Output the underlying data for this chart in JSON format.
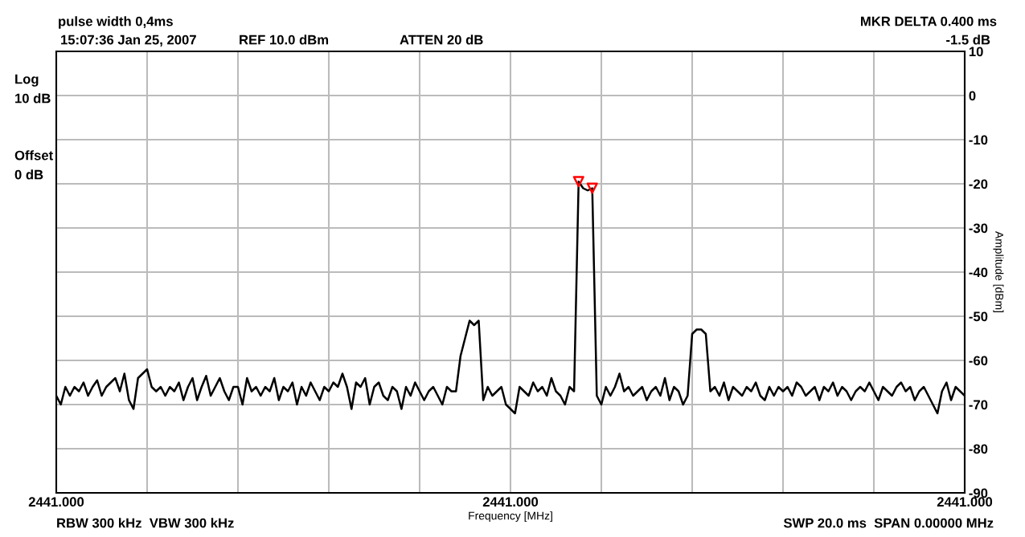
{
  "chart_data": {
    "type": "line",
    "title": "pulse width 0,4ms",
    "xlabel": "Frequency [MHz]",
    "ylabel": "Amplitude [dBm]",
    "annotations": [
      "15:07:36 Jan 25, 2007",
      "REF 10.0 dBm",
      "ATTEN 20 dB",
      "MKR DELTA 0.400 ms",
      "-1.5 dB",
      "Log",
      "10 dB",
      "Offset",
      "0 dB",
      "RBW 300 kHz  VBW 300 kHz",
      "SWP 20.0 ms  SPAN 0.00000 MHz"
    ],
    "categories": [
      "2441.000",
      null,
      null,
      null,
      null,
      null,
      null,
      null,
      null,
      null,
      null,
      null,
      null,
      null,
      null,
      null,
      null,
      null,
      null,
      null,
      null,
      null,
      null,
      null,
      null,
      null,
      null,
      null,
      null,
      null,
      null,
      null,
      null,
      null,
      null,
      null,
      null,
      null,
      null,
      null,
      null,
      null,
      null,
      null,
      null,
      null,
      null,
      null,
      null,
      null,
      null,
      null,
      null,
      null,
      null,
      null,
      null,
      null,
      null,
      null,
      null,
      null,
      null,
      null,
      null,
      null,
      null,
      null,
      null,
      null,
      null,
      null,
      null,
      null,
      null,
      null,
      null,
      null,
      null,
      null,
      null,
      null,
      null,
      null,
      null,
      null,
      null,
      null,
      null,
      null,
      null,
      null,
      null,
      null,
      null,
      null,
      null,
      null,
      null,
      null,
      "2441.000",
      null,
      null,
      null,
      null,
      null,
      null,
      null,
      null,
      null,
      null,
      null,
      null,
      null,
      null,
      null,
      null,
      null,
      null,
      null,
      null,
      null,
      null,
      null,
      null,
      null,
      null,
      null,
      null,
      null,
      null,
      null,
      null,
      null,
      null,
      null,
      null,
      null,
      null,
      null,
      null,
      null,
      null,
      null,
      null,
      null,
      null,
      null,
      null,
      null,
      null,
      null,
      null,
      null,
      null,
      null,
      null,
      null,
      null,
      null,
      null,
      null,
      null,
      null,
      null,
      null,
      null,
      null,
      null,
      null,
      null,
      null,
      null,
      null,
      null,
      null,
      null,
      null,
      null,
      null,
      null,
      null,
      null,
      null,
      null,
      null,
      null,
      null,
      null,
      null,
      null,
      null,
      null,
      null,
      null,
      null,
      null,
      null,
      null,
      null,
      "2441.000"
    ],
    "ylim": [
      -90,
      10
    ],
    "yticks": [
      -90,
      -80,
      -70,
      -60,
      -50,
      -40,
      -30,
      -20,
      -10,
      0,
      10
    ],
    "grid": true,
    "series": [
      {
        "color": "#000000",
        "line_style": "solid",
        "values": [
          -68,
          -70,
          -66,
          -68,
          -66,
          -67,
          -65,
          -68,
          -66,
          -64.5,
          -68,
          -66,
          -65,
          -64,
          -67,
          -63,
          -69,
          -71,
          -64,
          -63,
          -62,
          -66,
          -67,
          -66,
          -68,
          -66,
          -67,
          -65,
          -69,
          -66,
          -64,
          -69,
          -66,
          -63.5,
          -68,
          -66,
          -64,
          -67,
          -69,
          -66,
          -66,
          -70,
          -64,
          -67,
          -66,
          -68,
          -66,
          -67,
          -64,
          -69,
          -66,
          -67,
          -65,
          -70,
          -66,
          -68,
          -65,
          -67,
          -69,
          -66,
          -67,
          -65,
          -66,
          -63,
          -66,
          -71,
          -65,
          -66,
          -64,
          -70,
          -66,
          -65,
          -68,
          -69,
          -66,
          -67,
          -71,
          -66,
          -68,
          -65,
          -67,
          -69,
          -67,
          -66,
          -68,
          -70,
          -66,
          -67,
          -67,
          -59,
          -55,
          -51,
          -52,
          -51,
          -69,
          -66,
          -68,
          -67,
          -66,
          -70,
          -71,
          -72,
          -66,
          -67,
          -68,
          -65,
          -67,
          -66,
          -68,
          -64,
          -67,
          -68,
          -70,
          -66,
          -67,
          -19.5,
          -21,
          -21.5,
          -21,
          -68,
          -70,
          -66,
          -68,
          -66,
          -63,
          -67,
          -66,
          -68,
          -67,
          -66,
          -69,
          -67,
          -66,
          -68,
          -64,
          -69,
          -66,
          -67,
          -70,
          -68,
          -54,
          -53,
          -53,
          -54,
          -67,
          -66,
          -68,
          -65,
          -69,
          -66,
          -67,
          -68,
          -66,
          -67,
          -65,
          -68,
          -69,
          -66,
          -68,
          -66,
          -67,
          -66,
          -68,
          -65,
          -66,
          -68,
          -67,
          -66,
          -69,
          -66,
          -67,
          -65,
          -68,
          -66,
          -67,
          -69,
          -67,
          -66,
          -67,
          -65,
          -67,
          -69,
          -66,
          -67,
          -68,
          -66,
          -65,
          -67,
          -66,
          -69,
          -67,
          -66,
          -68,
          -70,
          -72,
          -67,
          -65,
          -69,
          -66,
          -67,
          -68
        ]
      },
      {
        "type": "scatter",
        "color": "#ff0000",
        "marker": "triangle",
        "values": [
          null,
          null,
          null,
          null,
          null,
          null,
          null,
          null,
          null,
          null,
          null,
          null,
          null,
          null,
          null,
          null,
          null,
          null,
          null,
          null,
          null,
          null,
          null,
          null,
          null,
          null,
          null,
          null,
          null,
          null,
          null,
          null,
          null,
          null,
          null,
          null,
          null,
          null,
          null,
          null,
          null,
          null,
          null,
          null,
          null,
          null,
          null,
          null,
          null,
          null,
          null,
          null,
          null,
          null,
          null,
          null,
          null,
          null,
          null,
          null,
          null,
          null,
          null,
          null,
          null,
          null,
          null,
          null,
          null,
          null,
          null,
          null,
          null,
          null,
          null,
          null,
          null,
          null,
          null,
          null,
          null,
          null,
          null,
          null,
          null,
          null,
          null,
          null,
          null,
          null,
          null,
          null,
          null,
          null,
          null,
          null,
          null,
          null,
          null,
          null,
          null,
          null,
          null,
          null,
          null,
          null,
          null,
          null,
          null,
          null,
          null,
          null,
          null,
          null,
          null,
          -19.5,
          null,
          null,
          -21,
          null,
          null,
          null,
          null,
          null,
          null,
          null,
          null,
          null,
          null,
          null,
          null,
          null,
          null,
          null,
          null,
          null,
          null,
          null,
          null,
          null,
          null,
          null,
          null,
          null,
          null,
          null,
          null,
          null,
          null,
          null,
          null,
          null,
          null,
          null,
          null,
          null,
          null,
          null,
          null,
          null,
          null,
          null,
          null,
          null,
          null,
          null,
          null,
          null,
          null,
          null,
          null,
          null,
          null,
          null,
          null,
          null,
          null,
          null,
          null,
          null,
          null,
          null,
          null,
          null,
          null,
          null,
          null,
          null,
          null,
          null,
          null,
          null,
          null,
          null,
          null,
          null,
          null,
          null,
          null,
          null,
          null
        ]
      }
    ]
  }
}
